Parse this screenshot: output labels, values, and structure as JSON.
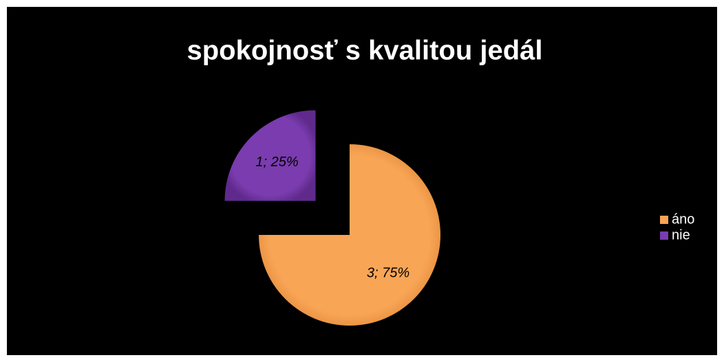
{
  "chart_data": {
    "type": "pie",
    "title": "spokojnosť s kvalitou jedál",
    "categories": [
      "áno",
      "nie"
    ],
    "values": [
      3,
      1
    ],
    "value_labels": [
      "3; 75%",
      "1; 25%"
    ],
    "colors": [
      "#f9a556",
      "#7a3cae"
    ],
    "legend": "right"
  }
}
